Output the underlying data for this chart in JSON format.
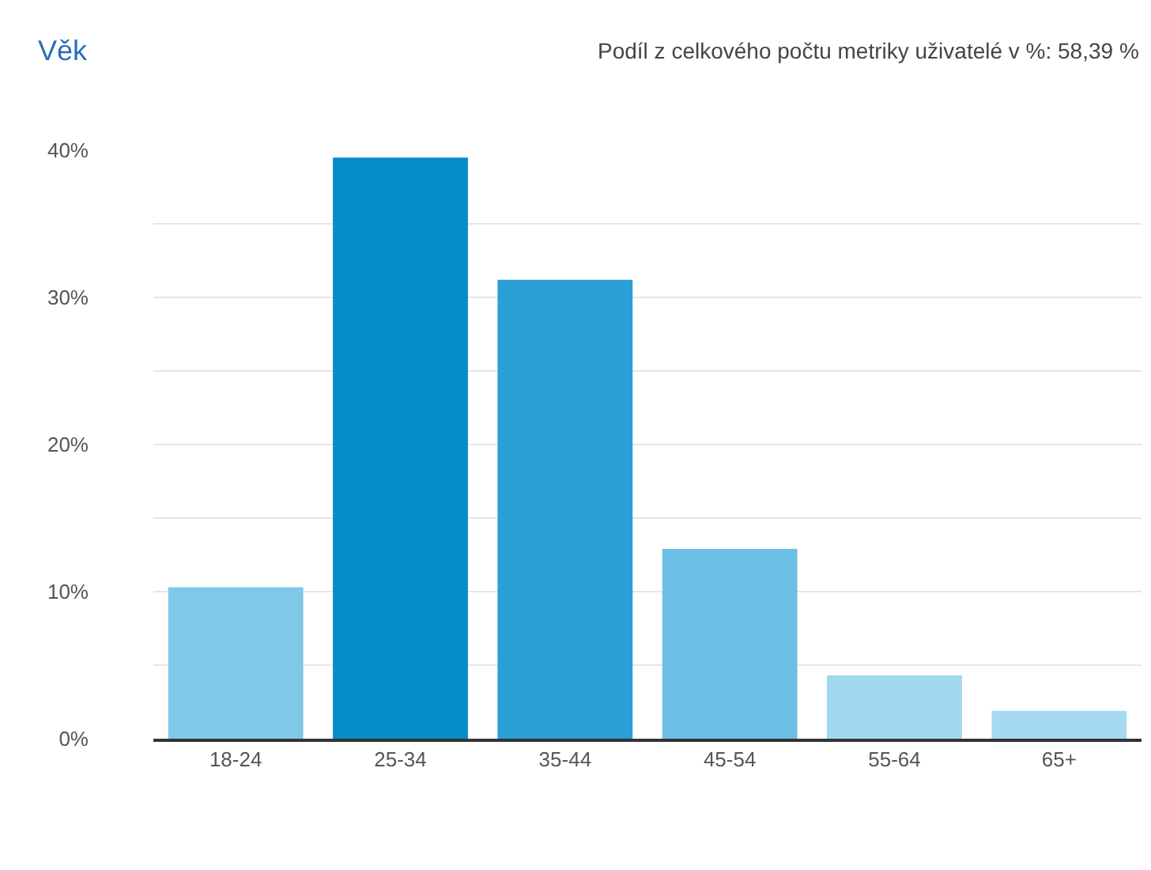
{
  "chart_data": {
    "type": "bar",
    "title": "Věk",
    "subtitle": "Podíl z celkového počtu metriky uživatelé v %: 58,39 %",
    "categories": [
      "18-24",
      "25-34",
      "35-44",
      "45-54",
      "55-64",
      "65+"
    ],
    "values": [
      10.3,
      39.5,
      31.2,
      12.9,
      4.3,
      1.9
    ],
    "colors": [
      "#7ec8e8",
      "#058dc7",
      "#2a9fd6",
      "#6cc0e5",
      "#a0d8f0",
      "#a6daf2"
    ],
    "ylim": [
      0,
      40
    ],
    "yticks": [
      {
        "value": 0,
        "label": "0%"
      },
      {
        "value": 5,
        "label": null
      },
      {
        "value": 10,
        "label": "10%"
      },
      {
        "value": 15,
        "label": null
      },
      {
        "value": 20,
        "label": "20%"
      },
      {
        "value": 25,
        "label": null
      },
      {
        "value": 30,
        "label": "30%"
      },
      {
        "value": 35,
        "label": null
      },
      {
        "value": 40,
        "label": "40%"
      }
    ],
    "grid": "y"
  }
}
